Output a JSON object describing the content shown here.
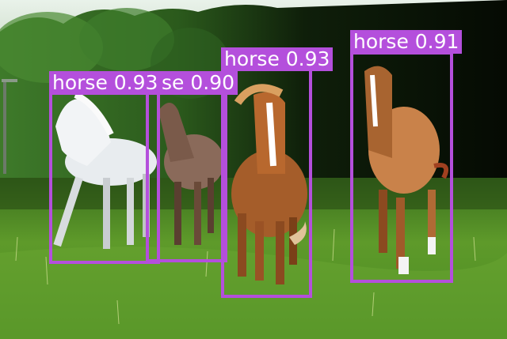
{
  "colors": {
    "box": "#b44fdc",
    "label_text": "#ffffff"
  },
  "detections": [
    {
      "label": "horse 0.93",
      "class": "horse",
      "score": 0.93
    },
    {
      "label": "se 0.90",
      "class": "horse",
      "score": 0.9
    },
    {
      "label": "horse 0.93",
      "class": "horse",
      "score": 0.93
    },
    {
      "label": "horse 0.91",
      "class": "horse",
      "score": 0.91
    }
  ]
}
